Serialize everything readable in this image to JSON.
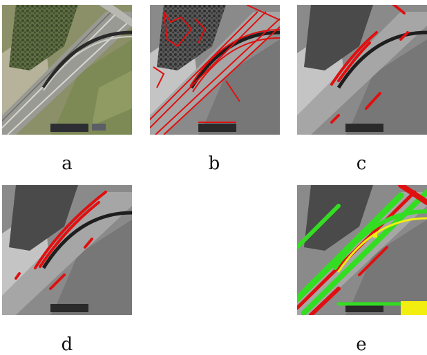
{
  "panels": [
    {
      "label": "a",
      "kind": "satellite-color"
    },
    {
      "label": "b",
      "kind": "grayscale-red-overlay-dense"
    },
    {
      "label": "c",
      "kind": "grayscale-red-overlay-sparse"
    },
    {
      "label": "d",
      "kind": "grayscale-red-overlay-sparse"
    },
    {
      "label": "e",
      "kind": "grayscale-red-green-yellow-overlay"
    }
  ],
  "colors": {
    "overlay_red": "#e01010",
    "overlay_green": "#33dd22",
    "overlay_yellow": "#f2ee10",
    "grass_green": "#7d8a55",
    "road_gray": "#9a9a94"
  }
}
